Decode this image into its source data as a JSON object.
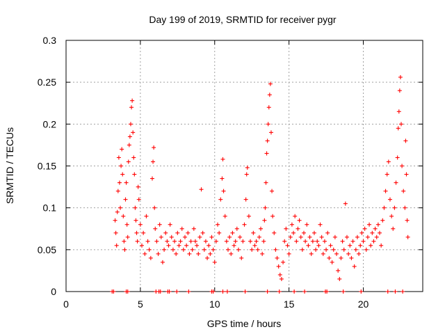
{
  "chart_data": {
    "type": "scatter",
    "title": "Day 199 of 2019, SRMTID for receiver pygr",
    "xlabel": "GPS time / hours",
    "ylabel": "SRMTID / TECUs",
    "xlim": [
      0,
      24
    ],
    "ylim": [
      0,
      0.3
    ],
    "xticks": [
      0,
      5,
      10,
      15,
      20
    ],
    "xtick_labels": [
      "0",
      "5",
      "10",
      "15",
      "20"
    ],
    "yticks": [
      0,
      0.05,
      0.1,
      0.15,
      0.2,
      0.25,
      0.3
    ],
    "ytick_labels": [
      "0",
      "0.05",
      "0.1",
      "0.15",
      "0.2",
      "0.25",
      "0.3"
    ],
    "grid": true,
    "marker": "+",
    "color": "#ff0000",
    "series": [
      {
        "name": "SRMTID",
        "points": [
          [
            3.3,
            0.085
          ],
          [
            3.35,
            0.07
          ],
          [
            3.4,
            0.055
          ],
          [
            3.45,
            0.095
          ],
          [
            3.5,
            0.12
          ],
          [
            3.55,
            0.16
          ],
          [
            3.6,
            0.13
          ],
          [
            3.65,
            0.1
          ],
          [
            3.7,
            0.15
          ],
          [
            3.75,
            0.17
          ],
          [
            3.8,
            0.14
          ],
          [
            3.85,
            0.09
          ],
          [
            3.9,
            0.06
          ],
          [
            3.95,
            0.05
          ],
          [
            4.0,
            0.11
          ],
          [
            4.05,
            0.13
          ],
          [
            4.1,
            0.08
          ],
          [
            4.15,
            0.065
          ],
          [
            4.2,
            0.155
          ],
          [
            4.25,
            0.175
          ],
          [
            4.3,
            0.185
          ],
          [
            4.35,
            0.2
          ],
          [
            4.4,
            0.22
          ],
          [
            4.45,
            0.228
          ],
          [
            4.5,
            0.19
          ],
          [
            4.55,
            0.16
          ],
          [
            4.6,
            0.14
          ],
          [
            4.65,
            0.1
          ],
          [
            4.7,
            0.085
          ],
          [
            4.75,
            0.07
          ],
          [
            4.8,
            0.06
          ],
          [
            4.85,
            0.125
          ],
          [
            4.9,
            0.11
          ],
          [
            5.0,
            0.08
          ],
          [
            5.1,
            0.055
          ],
          [
            5.2,
            0.07
          ],
          [
            5.3,
            0.045
          ],
          [
            5.4,
            0.09
          ],
          [
            5.5,
            0.06
          ],
          [
            5.6,
            0.05
          ],
          [
            5.7,
            0.04
          ],
          [
            5.8,
            0.135
          ],
          [
            5.85,
            0.155
          ],
          [
            5.9,
            0.172
          ],
          [
            5.95,
            0.1
          ],
          [
            6.0,
            0.075
          ],
          [
            6.1,
            0.06
          ],
          [
            6.2,
            0.045
          ],
          [
            6.3,
            0.08
          ],
          [
            6.4,
            0.065
          ],
          [
            6.5,
            0.035
          ],
          [
            6.6,
            0.05
          ],
          [
            6.7,
            0.07
          ],
          [
            6.8,
            0.06
          ],
          [
            6.9,
            0.055
          ],
          [
            7.0,
            0.08
          ],
          [
            7.1,
            0.065
          ],
          [
            7.2,
            0.05
          ],
          [
            7.3,
            0.06
          ],
          [
            7.4,
            0.045
          ],
          [
            7.5,
            0.07
          ],
          [
            7.6,
            0.055
          ],
          [
            7.7,
            0.06
          ],
          [
            7.8,
            0.075
          ],
          [
            7.9,
            0.05
          ],
          [
            8.0,
            0.065
          ],
          [
            8.1,
            0.055
          ],
          [
            8.2,
            0.07
          ],
          [
            8.3,
            0.045
          ],
          [
            8.4,
            0.06
          ],
          [
            8.5,
            0.05
          ],
          [
            8.6,
            0.075
          ],
          [
            8.7,
            0.06
          ],
          [
            8.8,
            0.055
          ],
          [
            8.9,
            0.045
          ],
          [
            9.0,
            0.065
          ],
          [
            9.1,
            0.122
          ],
          [
            9.2,
            0.07
          ],
          [
            9.3,
            0.05
          ],
          [
            9.4,
            0.06
          ],
          [
            9.5,
            0.04
          ],
          [
            9.6,
            0.055
          ],
          [
            9.7,
            0.045
          ],
          [
            9.8,
            0.065
          ],
          [
            9.9,
            0.05
          ],
          [
            10.0,
            0.035
          ],
          [
            10.1,
            0.06
          ],
          [
            10.2,
            0.08
          ],
          [
            10.3,
            0.07
          ],
          [
            10.4,
            0.11
          ],
          [
            10.5,
            0.135
          ],
          [
            10.55,
            0.158
          ],
          [
            10.6,
            0.12
          ],
          [
            10.7,
            0.09
          ],
          [
            10.8,
            0.06
          ],
          [
            10.9,
            0.05
          ],
          [
            11.0,
            0.065
          ],
          [
            11.1,
            0.045
          ],
          [
            11.2,
            0.07
          ],
          [
            11.3,
            0.055
          ],
          [
            11.4,
            0.06
          ],
          [
            11.5,
            0.075
          ],
          [
            11.6,
            0.05
          ],
          [
            11.7,
            0.065
          ],
          [
            11.8,
            0.04
          ],
          [
            11.9,
            0.06
          ],
          [
            12.0,
            0.08
          ],
          [
            12.1,
            0.11
          ],
          [
            12.15,
            0.14
          ],
          [
            12.2,
            0.148
          ],
          [
            12.3,
            0.09
          ],
          [
            12.4,
            0.06
          ],
          [
            12.5,
            0.05
          ],
          [
            12.6,
            0.07
          ],
          [
            12.7,
            0.055
          ],
          [
            12.8,
            0.06
          ],
          [
            12.9,
            0.05
          ],
          [
            13.0,
            0.065
          ],
          [
            13.1,
            0.075
          ],
          [
            13.2,
            0.045
          ],
          [
            13.3,
            0.06
          ],
          [
            13.35,
            0.085
          ],
          [
            13.4,
            0.1
          ],
          [
            13.45,
            0.13
          ],
          [
            13.5,
            0.165
          ],
          [
            13.55,
            0.18
          ],
          [
            13.6,
            0.2
          ],
          [
            13.65,
            0.22
          ],
          [
            13.7,
            0.235
          ],
          [
            13.75,
            0.248
          ],
          [
            13.8,
            0.19
          ],
          [
            13.85,
            0.12
          ],
          [
            13.9,
            0.09
          ],
          [
            14.0,
            0.07
          ],
          [
            14.1,
            0.05
          ],
          [
            14.2,
            0.04
          ],
          [
            14.3,
            0.03
          ],
          [
            14.4,
            0.02
          ],
          [
            14.5,
            0.015
          ],
          [
            14.6,
            0.035
          ],
          [
            14.7,
            0.06
          ],
          [
            14.8,
            0.075
          ],
          [
            14.9,
            0.055
          ],
          [
            15.0,
            0.045
          ],
          [
            15.1,
            0.065
          ],
          [
            15.2,
            0.08
          ],
          [
            15.3,
            0.07
          ],
          [
            15.4,
            0.09
          ],
          [
            15.5,
            0.06
          ],
          [
            15.6,
            0.075
          ],
          [
            15.7,
            0.085
          ],
          [
            15.8,
            0.065
          ],
          [
            15.9,
            0.05
          ],
          [
            16.0,
            0.07
          ],
          [
            16.1,
            0.06
          ],
          [
            16.2,
            0.08
          ],
          [
            16.3,
            0.055
          ],
          [
            16.4,
            0.065
          ],
          [
            16.5,
            0.045
          ],
          [
            16.6,
            0.06
          ],
          [
            16.7,
            0.07
          ],
          [
            16.8,
            0.05
          ],
          [
            16.9,
            0.06
          ],
          [
            17.0,
            0.055
          ],
          [
            17.1,
            0.08
          ],
          [
            17.2,
            0.065
          ],
          [
            17.3,
            0.045
          ],
          [
            17.4,
            0.06
          ],
          [
            17.5,
            0.05
          ],
          [
            17.6,
            0.07
          ],
          [
            17.7,
            0.04
          ],
          [
            17.8,
            0.055
          ],
          [
            17.9,
            0.035
          ],
          [
            18.0,
            0.05
          ],
          [
            18.1,
            0.065
          ],
          [
            18.2,
            0.045
          ],
          [
            18.3,
            0.025
          ],
          [
            18.4,
            0.015
          ],
          [
            18.5,
            0.04
          ],
          [
            18.6,
            0.06
          ],
          [
            18.7,
            0.05
          ],
          [
            18.8,
            0.105
          ],
          [
            18.9,
            0.065
          ],
          [
            19.0,
            0.045
          ],
          [
            19.1,
            0.055
          ],
          [
            19.2,
            0.04
          ],
          [
            19.3,
            0.06
          ],
          [
            19.4,
            0.03
          ],
          [
            19.5,
            0.05
          ],
          [
            19.6,
            0.065
          ],
          [
            19.7,
            0.045
          ],
          [
            19.8,
            0.055
          ],
          [
            19.9,
            0.07
          ],
          [
            20.0,
            0.06
          ],
          [
            20.1,
            0.075
          ],
          [
            20.2,
            0.05
          ],
          [
            20.3,
            0.065
          ],
          [
            20.4,
            0.08
          ],
          [
            20.5,
            0.055
          ],
          [
            20.6,
            0.07
          ],
          [
            20.7,
            0.06
          ],
          [
            20.8,
            0.075
          ],
          [
            20.9,
            0.065
          ],
          [
            21.0,
            0.08
          ],
          [
            21.1,
            0.07
          ],
          [
            21.2,
            0.055
          ],
          [
            21.3,
            0.085
          ],
          [
            21.4,
            0.1
          ],
          [
            21.5,
            0.12
          ],
          [
            21.6,
            0.14
          ],
          [
            21.7,
            0.155
          ],
          [
            21.8,
            0.11
          ],
          [
            21.9,
            0.09
          ],
          [
            22.0,
            0.075
          ],
          [
            22.1,
            0.1
          ],
          [
            22.2,
            0.13
          ],
          [
            22.3,
            0.16
          ],
          [
            22.35,
            0.195
          ],
          [
            22.4,
            0.215
          ],
          [
            22.45,
            0.24
          ],
          [
            22.5,
            0.256
          ],
          [
            22.55,
            0.2
          ],
          [
            22.6,
            0.15
          ],
          [
            22.7,
            0.12
          ],
          [
            22.8,
            0.1
          ],
          [
            22.85,
            0.18
          ],
          [
            22.9,
            0.14
          ],
          [
            22.95,
            0.085
          ],
          [
            23.0,
            0.065
          ]
        ],
        "zero_points": [
          3.1,
          3.2,
          4.05,
          4.15,
          6.05,
          6.25,
          6.35,
          6.85,
          6.95,
          7.45,
          8.25,
          9.8,
          9.9,
          10.55,
          10.85,
          12.05,
          13.55,
          14.35,
          15.35,
          16.05,
          17.45,
          17.55,
          18.65,
          19.85,
          21.65,
          22.15,
          22.65
        ]
      }
    ]
  }
}
